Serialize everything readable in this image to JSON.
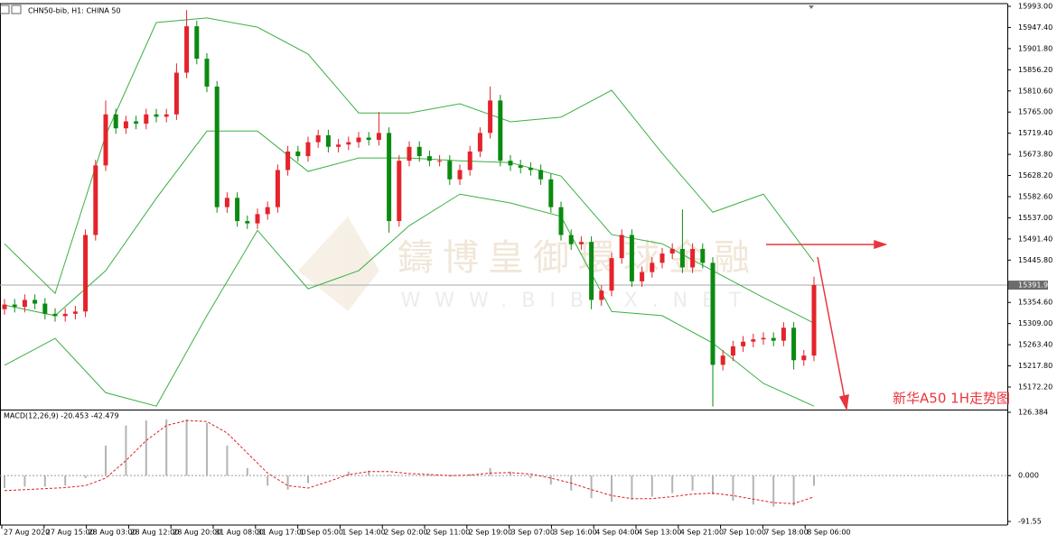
{
  "chart_data": [
    {
      "type": "candlestick",
      "title": "CHN50-bib, H1: CHINA 50",
      "x_labels": [
        "27 Aug 2020",
        "27 Aug 15:00",
        "28 Aug 03:00",
        "28 Aug 12:00",
        "28 Aug 20:00",
        "31 Aug 08:00",
        "31 Aug 17:00",
        "1 Sep 05:00",
        "1 Sep 14:00",
        "2 Sep 02:00",
        "2 Sep 11:00",
        "2 Sep 19:00",
        "3 Sep 07:00",
        "3 Sep 16:00",
        "4 Sep 04:00",
        "4 Sep 13:00",
        "4 Sep 21:00",
        "7 Sep 10:00",
        "7 Sep 18:00",
        "8 Sep 06:00"
      ],
      "open": [
        15340,
        15350,
        15345,
        15360,
        15352,
        15330,
        15325,
        15330,
        15335,
        15500,
        15650,
        15760,
        15730,
        15745,
        15740,
        15760,
        15755,
        15760,
        15850,
        15950,
        15880,
        15820,
        15560,
        15580,
        15530,
        15525,
        15545,
        15560,
        15640,
        15680,
        15670,
        15700,
        15715,
        15690,
        15695,
        15700,
        15710,
        15705,
        15720,
        15530,
        15660,
        15690,
        15670,
        15660,
        15660,
        15620,
        15640,
        15680,
        15720,
        15790,
        15660,
        15650,
        15645,
        15640,
        15620,
        15560,
        15500,
        15480,
        15485,
        15360,
        15380,
        15450,
        15500,
        15400,
        15420,
        15440,
        15460,
        15470,
        15430,
        15470,
        15440,
        15220,
        15240,
        15260,
        15270,
        15275,
        15278,
        15272,
        15300,
        15230,
        15240
      ],
      "high": [
        15362,
        15362,
        15372,
        15372,
        15364,
        15342,
        15342,
        15347,
        15512,
        15662,
        15790,
        15772,
        15757,
        15757,
        15772,
        15772,
        15772,
        15870,
        15985,
        15962,
        15892,
        15832,
        15592,
        15592,
        15542,
        15557,
        15572,
        15652,
        15692,
        15692,
        15712,
        15727,
        15727,
        15707,
        15712,
        15722,
        15722,
        15765,
        15732,
        15672,
        15702,
        15702,
        15682,
        15672,
        15672,
        15652,
        15692,
        15732,
        15820,
        15802,
        15672,
        15662,
        15657,
        15652,
        15632,
        15572,
        15512,
        15497,
        15497,
        15392,
        15462,
        15512,
        15512,
        15432,
        15452,
        15472,
        15482,
        15555,
        15482,
        15482,
        15452,
        15252,
        15272,
        15282,
        15287,
        15290,
        15290,
        15312,
        15312,
        15252,
        15410
      ],
      "low": [
        15328,
        15333,
        15333,
        15340,
        15318,
        15313,
        15313,
        15318,
        15323,
        15488,
        15638,
        15718,
        15718,
        15728,
        15728,
        15743,
        15743,
        15748,
        15838,
        15868,
        15808,
        15548,
        15548,
        15518,
        15513,
        15513,
        15533,
        15548,
        15628,
        15658,
        15658,
        15688,
        15678,
        15678,
        15683,
        15688,
        15693,
        15693,
        15505,
        15518,
        15648,
        15658,
        15648,
        15648,
        15608,
        15608,
        15628,
        15668,
        15708,
        15648,
        15638,
        15633,
        15628,
        15608,
        15548,
        15488,
        15468,
        15468,
        15340,
        15348,
        15368,
        15438,
        15388,
        15388,
        15408,
        15428,
        15448,
        15418,
        15418,
        15428,
        15130,
        15208,
        15228,
        15248,
        15258,
        15263,
        15260,
        15260,
        15210,
        15218,
        15228
      ],
      "close": [
        15350,
        15345,
        15360,
        15352,
        15330,
        15325,
        15330,
        15335,
        15500,
        15650,
        15760,
        15730,
        15745,
        15740,
        15760,
        15755,
        15760,
        15850,
        15950,
        15880,
        15820,
        15560,
        15580,
        15530,
        15525,
        15545,
        15560,
        15640,
        15680,
        15670,
        15700,
        15715,
        15690,
        15695,
        15700,
        15710,
        15705,
        15720,
        15530,
        15660,
        15690,
        15670,
        15660,
        15660,
        15620,
        15640,
        15680,
        15720,
        15790,
        15660,
        15650,
        15645,
        15640,
        15620,
        15560,
        15500,
        15480,
        15485,
        15360,
        15380,
        15450,
        15500,
        15400,
        15420,
        15440,
        15460,
        15470,
        15430,
        15470,
        15440,
        15220,
        15240,
        15260,
        15270,
        15275,
        15278,
        15272,
        15300,
        15230,
        15240,
        15392
      ],
      "up_color": "#e4232b",
      "down_color": "#0b8a12",
      "bands": {
        "color": "#3cb043",
        "x": [
          0,
          5,
          10,
          15,
          20,
          25,
          30,
          35,
          40,
          45,
          50,
          55,
          60,
          65,
          70,
          75,
          80
        ],
        "upper": [
          15481,
          15374,
          15715,
          15958,
          15968,
          15948,
          15890,
          15763,
          15763,
          15783,
          15744,
          15754,
          15812,
          15676,
          15549,
          15588,
          15442
        ],
        "middle": [
          15349,
          15326,
          15423,
          15579,
          15724,
          15724,
          15637,
          15666,
          15666,
          15660,
          15656,
          15627,
          15501,
          15481,
          15423,
          15365,
          15310
        ],
        "lower": [
          15219,
          15277,
          15160,
          15131,
          15326,
          15510,
          15384,
          15423,
          15520,
          15588,
          15569,
          15540,
          15335,
          15326,
          15267,
          15180,
          15131
        ]
      },
      "ylim": [
        15125.5,
        15996.9
      ],
      "yticks": [
        {
          "value": 15993,
          "label": "15993.00"
        },
        {
          "value": 15947.4,
          "label": "15947.40"
        },
        {
          "value": 15901.8,
          "label": "15901.80"
        },
        {
          "value": 15856.2,
          "label": "15856.20"
        },
        {
          "value": 15810.6,
          "label": "15810.60"
        },
        {
          "value": 15765,
          "label": "15765.00"
        },
        {
          "value": 15719.4,
          "label": "15719.40"
        },
        {
          "value": 15673.8,
          "label": "15673.80"
        },
        {
          "value": 15628.2,
          "label": "15628.20"
        },
        {
          "value": 15582.6,
          "label": "15582.60"
        },
        {
          "value": 15537,
          "label": "15537.00"
        },
        {
          "value": 15491.4,
          "label": "15491.40"
        },
        {
          "value": 15445.8,
          "label": "15445.80"
        },
        {
          "value": 15354.6,
          "label": "15354.60"
        },
        {
          "value": 15309,
          "label": "15309.00"
        },
        {
          "value": 15263.4,
          "label": "15263.40"
        },
        {
          "value": 15217.8,
          "label": "15217.80"
        },
        {
          "value": 15172.2,
          "label": "15172.20"
        }
      ],
      "current_price": {
        "value": 15391.9,
        "label": "15391.90"
      }
    },
    {
      "type": "macd",
      "title": "MACD(12,26,9) -20.453 -42.479",
      "x": [
        0,
        2,
        4,
        6,
        8,
        10,
        12,
        14,
        16,
        18,
        20,
        22,
        24,
        26,
        28,
        30,
        32,
        34,
        36,
        38,
        40,
        42,
        44,
        46,
        48,
        50,
        52,
        54,
        56,
        58,
        60,
        62,
        64,
        66,
        68,
        70,
        72,
        74,
        76,
        78,
        80
      ],
      "main": [
        -25,
        -22,
        -22,
        -20,
        -5,
        60,
        100,
        110,
        112,
        112,
        105,
        60,
        15,
        -20,
        -28,
        -15,
        0,
        8,
        10,
        2,
        0,
        2,
        -2,
        3,
        15,
        8,
        -5,
        -18,
        -30,
        -45,
        -52,
        -48,
        -42,
        -35,
        -30,
        -38,
        -50,
        -58,
        -62,
        -60,
        -20.453
      ],
      "signal": [
        -30,
        -28,
        -26,
        -24,
        -20,
        -5,
        30,
        70,
        100,
        110,
        108,
        85,
        45,
        5,
        -20,
        -25,
        -12,
        2,
        8,
        8,
        4,
        2,
        0,
        1,
        5,
        6,
        3,
        -5,
        -15,
        -28,
        -40,
        -46,
        -46,
        -42,
        -37,
        -35,
        -40,
        -47,
        -54,
        -56,
        -42.479
      ],
      "main_color": "#b4b4b4",
      "signal_color": "#e02020",
      "ylim": [
        -91.55,
        126.384
      ],
      "yticks": [
        126.384,
        {
          "value": 0,
          "label": "0.000"
        },
        -91.55
      ]
    }
  ],
  "annotation": "新华A50 1H走势图",
  "watermark": {
    "name": "鑄博皇御環球金融",
    "url": "WWW.BIBFX.NET"
  }
}
